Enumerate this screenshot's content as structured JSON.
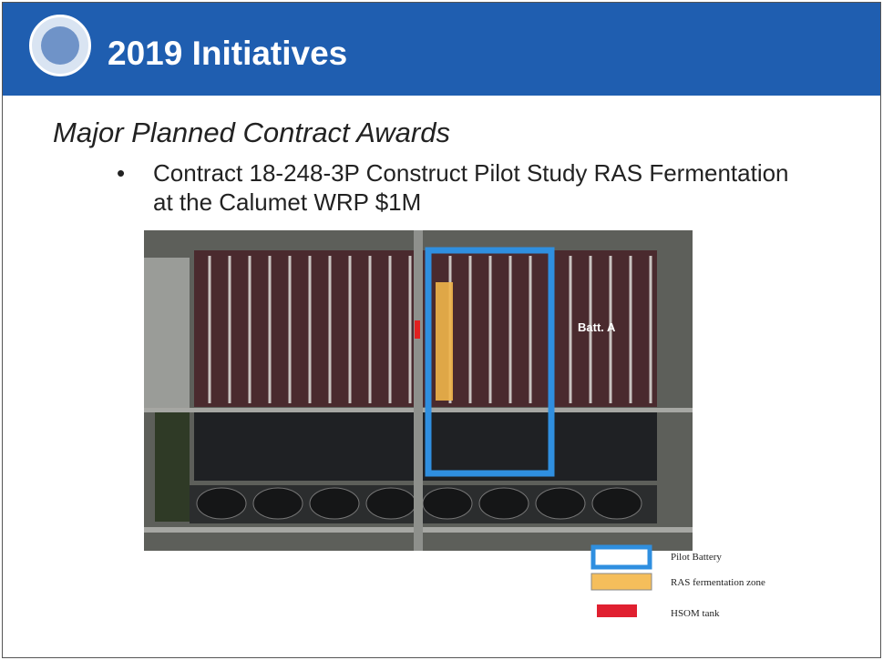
{
  "header": {
    "title": "2019 Initiatives"
  },
  "heading": "Major Planned Contract Awards",
  "bullets": [
    "Contract 18-248-3P Construct Pilot Study RAS Fermentation at the Calumet WRP $1M"
  ],
  "image": {
    "label": "Batt. A"
  },
  "legend": [
    {
      "label": "Pilot Battery"
    },
    {
      "label": "RAS fermentation zone"
    },
    {
      "label": "HSOM tank"
    }
  ]
}
